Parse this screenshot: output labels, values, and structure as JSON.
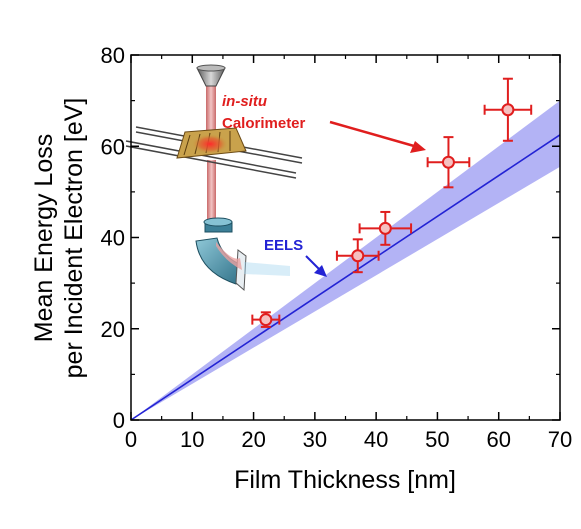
{
  "chart_data": {
    "type": "scatter",
    "xlabel": "Film Thickness [nm]",
    "ylabel_lines": [
      "Mean Energy Loss",
      "per Incident Electron [eV]"
    ],
    "xlim": [
      0,
      70
    ],
    "ylim": [
      0,
      80
    ],
    "xticks": [
      "0",
      "10",
      "20",
      "30",
      "40",
      "50",
      "60",
      "70"
    ],
    "yticks": [
      "0",
      "20",
      "40",
      "60",
      "80"
    ],
    "grid": false,
    "series": [
      {
        "name": "in-situ Calorimeter",
        "type": "scatter",
        "color": "#e01e1e",
        "points": [
          {
            "x": 22,
            "y": 22,
            "xerr": 2.2,
            "yerr": 1.6
          },
          {
            "x": 37,
            "y": 36,
            "xerr": 3.4,
            "yerr": 3.6
          },
          {
            "x": 41.5,
            "y": 42,
            "xerr": 4.2,
            "yerr": 3.6
          },
          {
            "x": 51.8,
            "y": 56.5,
            "xerr": 3.4,
            "yerr": 5.5
          },
          {
            "x": 61.5,
            "y": 68,
            "xerr": 3.8,
            "yerr": 6.8
          }
        ]
      },
      {
        "name": "EELS",
        "type": "line",
        "color": "#2323d4",
        "band_color": "#b3b3f5",
        "line": [
          [
            0,
            0
          ],
          [
            70,
            62.5
          ]
        ],
        "band_upper": [
          [
            0,
            0
          ],
          [
            70,
            70
          ]
        ],
        "band_lower": [
          [
            0,
            0
          ],
          [
            70,
            55.5
          ]
        ]
      }
    ],
    "annotations": {
      "calorimeter_italic": "in-situ",
      "calorimeter": "Calorimeter",
      "eels": "EELS"
    }
  }
}
